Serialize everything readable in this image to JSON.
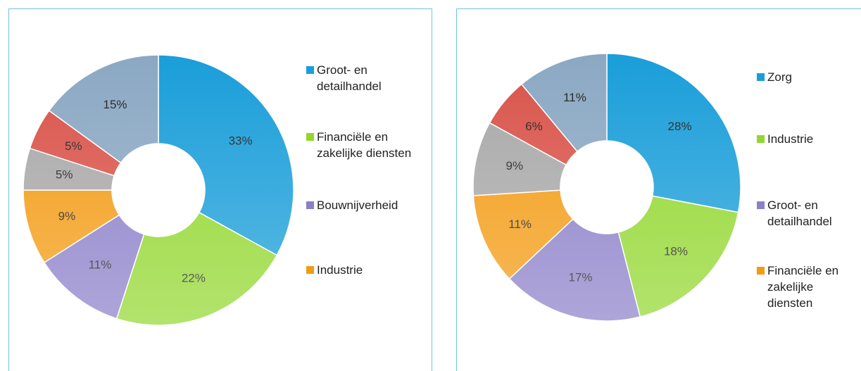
{
  "chart_data": [
    {
      "type": "donut",
      "categories": [
        "Groot- en detailhandel",
        "Financiële en zakelijke diensten",
        "Bouwnijverheid",
        "Industrie",
        null,
        null,
        null
      ],
      "values": [
        33,
        22,
        11,
        9,
        5,
        5,
        15
      ],
      "value_labels": [
        "33%",
        "22%",
        "11%",
        "9%",
        "5%",
        "5%",
        "15%"
      ],
      "colors": [
        "#1a9ed9",
        "#92d72e",
        "#8b7fc9",
        "#f39b13",
        "#a8a8a8",
        "#d9534a",
        "#8ba8c3"
      ],
      "legend": "right"
    },
    {
      "type": "donut",
      "categories": [
        "Zorg",
        "Industrie",
        "Groot- en detailhandel",
        "Financiële en zakelijke diensten",
        null,
        null,
        null
      ],
      "values": [
        28,
        18,
        17,
        11,
        9,
        6,
        11
      ],
      "value_labels": [
        "28%",
        "18%",
        "17%",
        "11%",
        "9%",
        "6%",
        "11%"
      ],
      "colors": [
        "#1a9ed9",
        "#92d72e",
        "#8b7fc9",
        "#f39b13",
        "#a8a8a8",
        "#d9534a",
        "#8ba8c3"
      ],
      "legend": "right"
    }
  ]
}
